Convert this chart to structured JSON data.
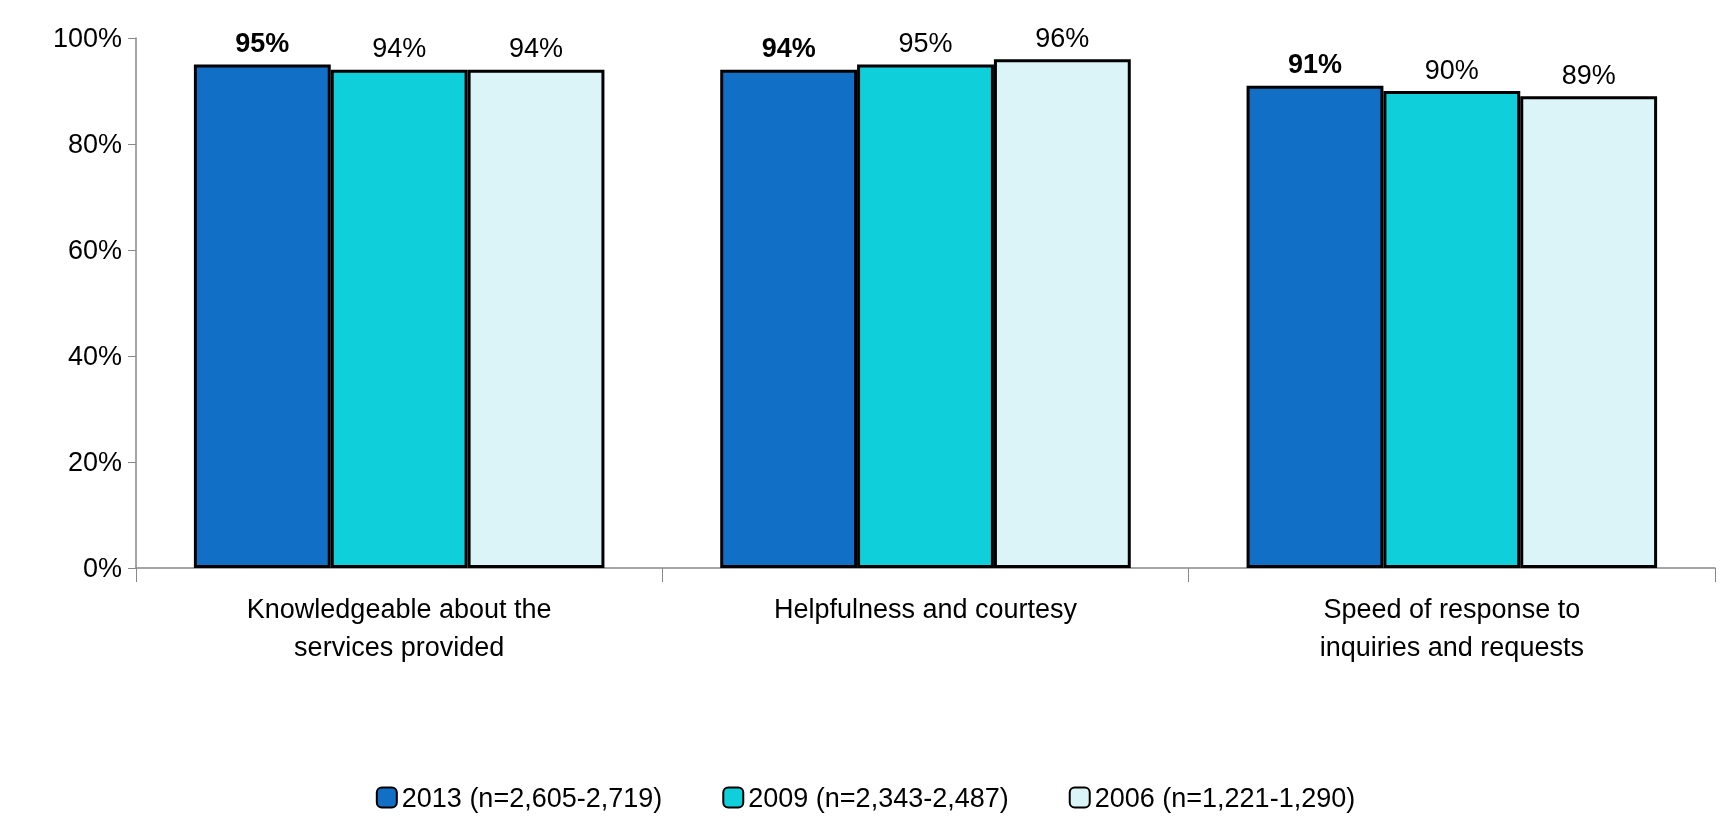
{
  "chart_data": {
    "type": "bar",
    "categories": [
      "Knowledgeable about the services provided",
      "Helpfulness and courtesy",
      "Speed of response to inquiries and requests"
    ],
    "series": [
      {
        "name": "2013 (n=2,605-2,719)",
        "color": "#1170c6",
        "values": [
          95,
          94,
          91
        ],
        "value_labels": [
          "95%",
          "94%",
          "91%"
        ]
      },
      {
        "name": "2009 (n=2,343-2,487)",
        "color": "#0fd0da",
        "values": [
          94,
          95,
          90
        ],
        "value_labels": [
          "94%",
          "95%",
          "90%"
        ]
      },
      {
        "name": "2006 (n=1,221-1,290)",
        "color": "#dbf4f8",
        "values": [
          94,
          96,
          89
        ],
        "value_labels": [
          "94%",
          "96%",
          "89%"
        ]
      }
    ],
    "ylim": [
      0,
      100
    ],
    "yticks": [
      {
        "value": 0,
        "label": "0%"
      },
      {
        "value": 20,
        "label": "20%"
      },
      {
        "value": 40,
        "label": "40%"
      },
      {
        "value": 60,
        "label": "60%"
      },
      {
        "value": 80,
        "label": "80%"
      },
      {
        "value": 100,
        "label": "100%"
      }
    ],
    "grid": false,
    "legend": "bottom"
  }
}
